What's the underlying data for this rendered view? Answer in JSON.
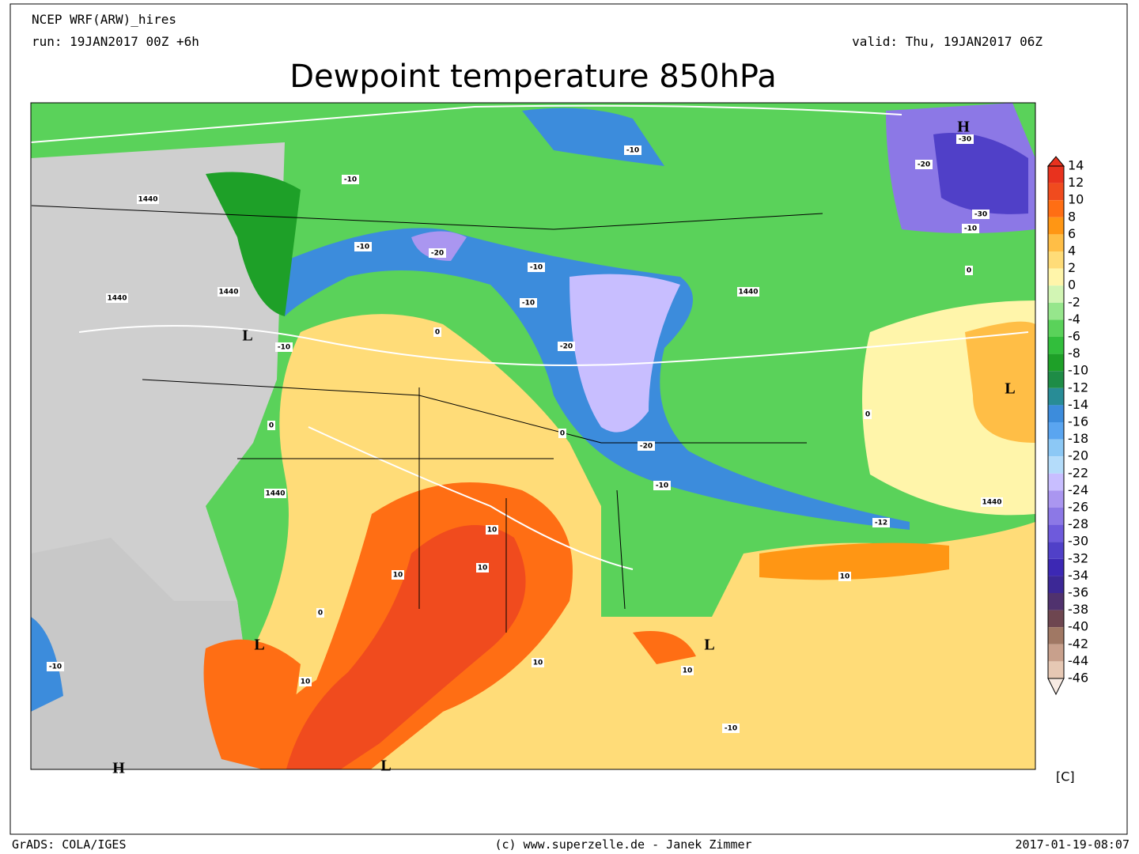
{
  "header": {
    "model": "NCEP WRF(ARW)_hires",
    "run": "run: 19JAN2017 00Z +6h",
    "valid": "valid: Thu, 19JAN2017 06Z",
    "title": "Dewpoint temperature 850hPa"
  },
  "map": {
    "pressure_centers": [
      "L",
      "L",
      "L",
      "L",
      "L",
      "H",
      "H"
    ],
    "contour_labels": [
      -10,
      -10,
      -10,
      -10,
      -10,
      -10,
      -10,
      -10,
      -10,
      -10,
      -20,
      -20,
      -20,
      -20,
      -30,
      -30,
      1440,
      1440,
      1440,
      1440,
      1440,
      1440,
      0,
      0,
      0,
      0,
      0,
      0,
      10,
      10,
      10,
      10,
      10,
      10,
      10,
      -12
    ]
  },
  "colorbar": {
    "unit": "[C]",
    "levels": [
      {
        "value": 14,
        "color": "#e8321e"
      },
      {
        "value": 12,
        "color": "#f04b1e"
      },
      {
        "value": 10,
        "color": "#ff6e14"
      },
      {
        "value": 8,
        "color": "#ff9614"
      },
      {
        "value": 6,
        "color": "#ffbe46"
      },
      {
        "value": 4,
        "color": "#ffdc78"
      },
      {
        "value": 2,
        "color": "#fff5aa"
      },
      {
        "value": 0,
        "color": "#d2f5b4"
      },
      {
        "value": -2,
        "color": "#96e68c"
      },
      {
        "value": -4,
        "color": "#5ad25a"
      },
      {
        "value": -6,
        "color": "#32be3c"
      },
      {
        "value": -8,
        "color": "#1ea028"
      },
      {
        "value": -10,
        "color": "#1e8c46"
      },
      {
        "value": -12,
        "color": "#288c96"
      },
      {
        "value": -14,
        "color": "#3c8cdc"
      },
      {
        "value": -16,
        "color": "#5aa5f0"
      },
      {
        "value": -18,
        "color": "#8cc8f5"
      },
      {
        "value": -20,
        "color": "#b4dcfa"
      },
      {
        "value": -22,
        "color": "#c8beff"
      },
      {
        "value": -24,
        "color": "#aa96f0"
      },
      {
        "value": -26,
        "color": "#8c78e6"
      },
      {
        "value": -28,
        "color": "#6e5adc"
      },
      {
        "value": -30,
        "color": "#5040c8"
      },
      {
        "value": -32,
        "color": "#3c28b4"
      },
      {
        "value": -34,
        "color": "#3c2896"
      },
      {
        "value": -36,
        "color": "#50326e"
      },
      {
        "value": -38,
        "color": "#6e4650"
      },
      {
        "value": -40,
        "color": "#a07864"
      },
      {
        "value": -42,
        "color": "#c8a08c"
      },
      {
        "value": -44,
        "color": "#e6c8b4"
      },
      {
        "value": -46,
        "color": "#f8ebe3"
      }
    ]
  },
  "footer": {
    "left": "GrADS: COLA/IGES",
    "center": "(c) www.superzelle.de - Janek Zimmer",
    "right": "2017-01-19-08:07"
  }
}
